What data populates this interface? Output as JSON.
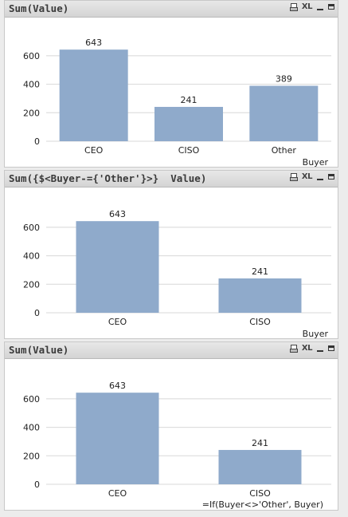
{
  "bar_color": "#8faacb",
  "grid_color": "#d8d8d8",
  "icons": {
    "print": "print-icon",
    "xl_label": "XL",
    "minimize": "minimize-icon",
    "maximize": "maximize-icon"
  },
  "charts": [
    {
      "title": "Sum(Value)",
      "dimension_label": "Buyer",
      "chart_data": {
        "type": "bar",
        "categories": [
          "CEO",
          "CISO",
          "Other"
        ],
        "values": [
          643,
          241,
          389
        ],
        "value_labels": [
          "643",
          "241",
          "389"
        ],
        "y_ticks": [
          "0",
          "200",
          "400",
          "600"
        ],
        "ylim": [
          0,
          700
        ],
        "grid": true
      }
    },
    {
      "title": "Sum({$<Buyer-={'Other'}>}  Value)",
      "dimension_label": "Buyer",
      "chart_data": {
        "type": "bar",
        "categories": [
          "CEO",
          "CISO"
        ],
        "values": [
          643,
          241
        ],
        "value_labels": [
          "643",
          "241"
        ],
        "y_ticks": [
          "0",
          "200",
          "400",
          "600"
        ],
        "ylim": [
          0,
          700
        ],
        "grid": true
      }
    },
    {
      "title": "Sum(Value)",
      "dimension_label": "=If(Buyer<>'Other', Buyer)",
      "chart_data": {
        "type": "bar",
        "categories": [
          "CEO",
          "CISO"
        ],
        "values": [
          643,
          241
        ],
        "value_labels": [
          "643",
          "241"
        ],
        "y_ticks": [
          "0",
          "200",
          "400",
          "600"
        ],
        "ylim": [
          0,
          700
        ],
        "grid": true
      }
    }
  ]
}
